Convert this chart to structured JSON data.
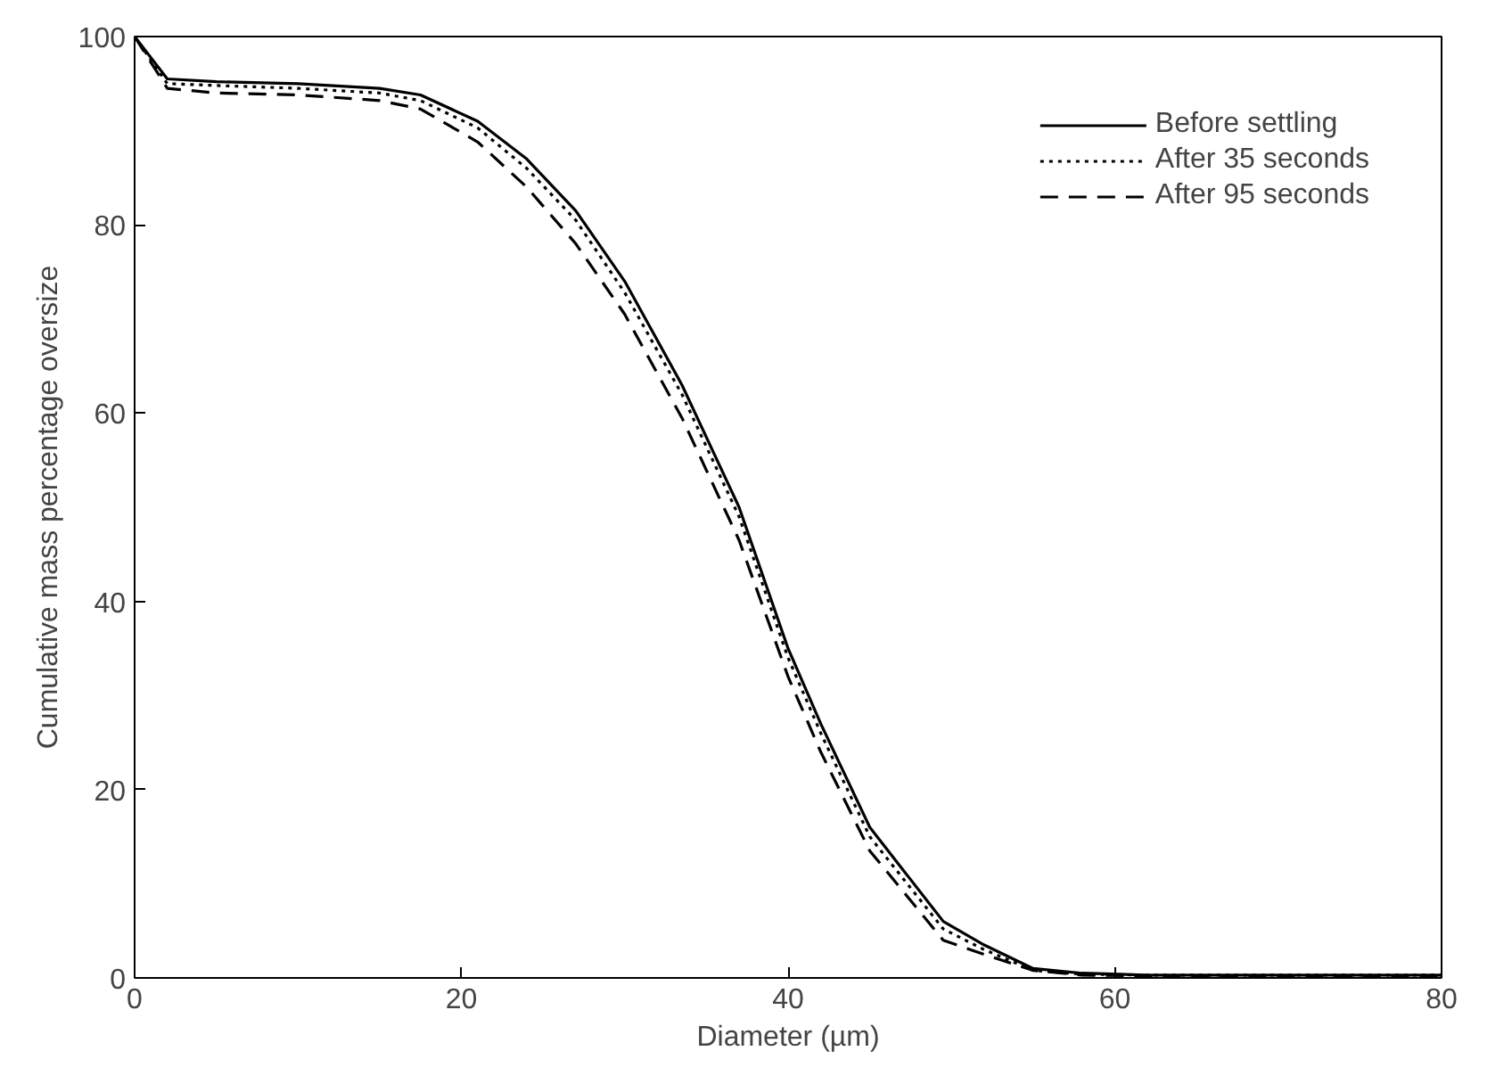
{
  "chart_data": {
    "type": "line",
    "xlabel": "Diameter (µm)",
    "ylabel": "Cumulative mass percentage oversize",
    "xlim": [
      0,
      80
    ],
    "ylim": [
      0,
      100
    ],
    "xticks": [
      0,
      20,
      40,
      60,
      80
    ],
    "yticks": [
      0,
      20,
      40,
      60,
      80,
      100
    ],
    "grid": false,
    "legend": "top right",
    "marker": "none",
    "x": [
      0,
      2,
      5,
      10,
      15,
      17.5,
      21,
      24,
      27,
      30,
      33.5,
      37,
      40,
      42,
      45,
      49.5,
      52,
      55,
      58,
      62,
      70,
      80
    ],
    "series": [
      {
        "name": "Before settling",
        "color": "#000000",
        "line_style": "solid",
        "values": [
          100,
          95.5,
          95.2,
          95,
          94.5,
          93.8,
          91,
          87,
          81.5,
          74,
          63,
          50,
          35,
          27,
          16,
          6,
          3.5,
          1,
          0.5,
          0.3,
          0.3,
          0.3
        ]
      },
      {
        "name": "After 35 seconds",
        "color": "#000000",
        "line_style": "dotted",
        "values": [
          100,
          95,
          94.8,
          94.5,
          94,
          93.2,
          90.3,
          86,
          80.5,
          72.8,
          62,
          49,
          34,
          26,
          15,
          5.2,
          3,
          0.8,
          0.4,
          0.3,
          0.3,
          0.3
        ]
      },
      {
        "name": "After 95 seconds",
        "color": "#000000",
        "line_style": "dashed",
        "values": [
          100,
          94.5,
          94,
          93.8,
          93.2,
          92.3,
          88.8,
          84,
          78,
          70.5,
          59.5,
          46.5,
          32,
          24,
          13.5,
          4,
          2.5,
          0.8,
          0.3,
          0.2,
          0.2,
          0.2
        ]
      }
    ]
  }
}
